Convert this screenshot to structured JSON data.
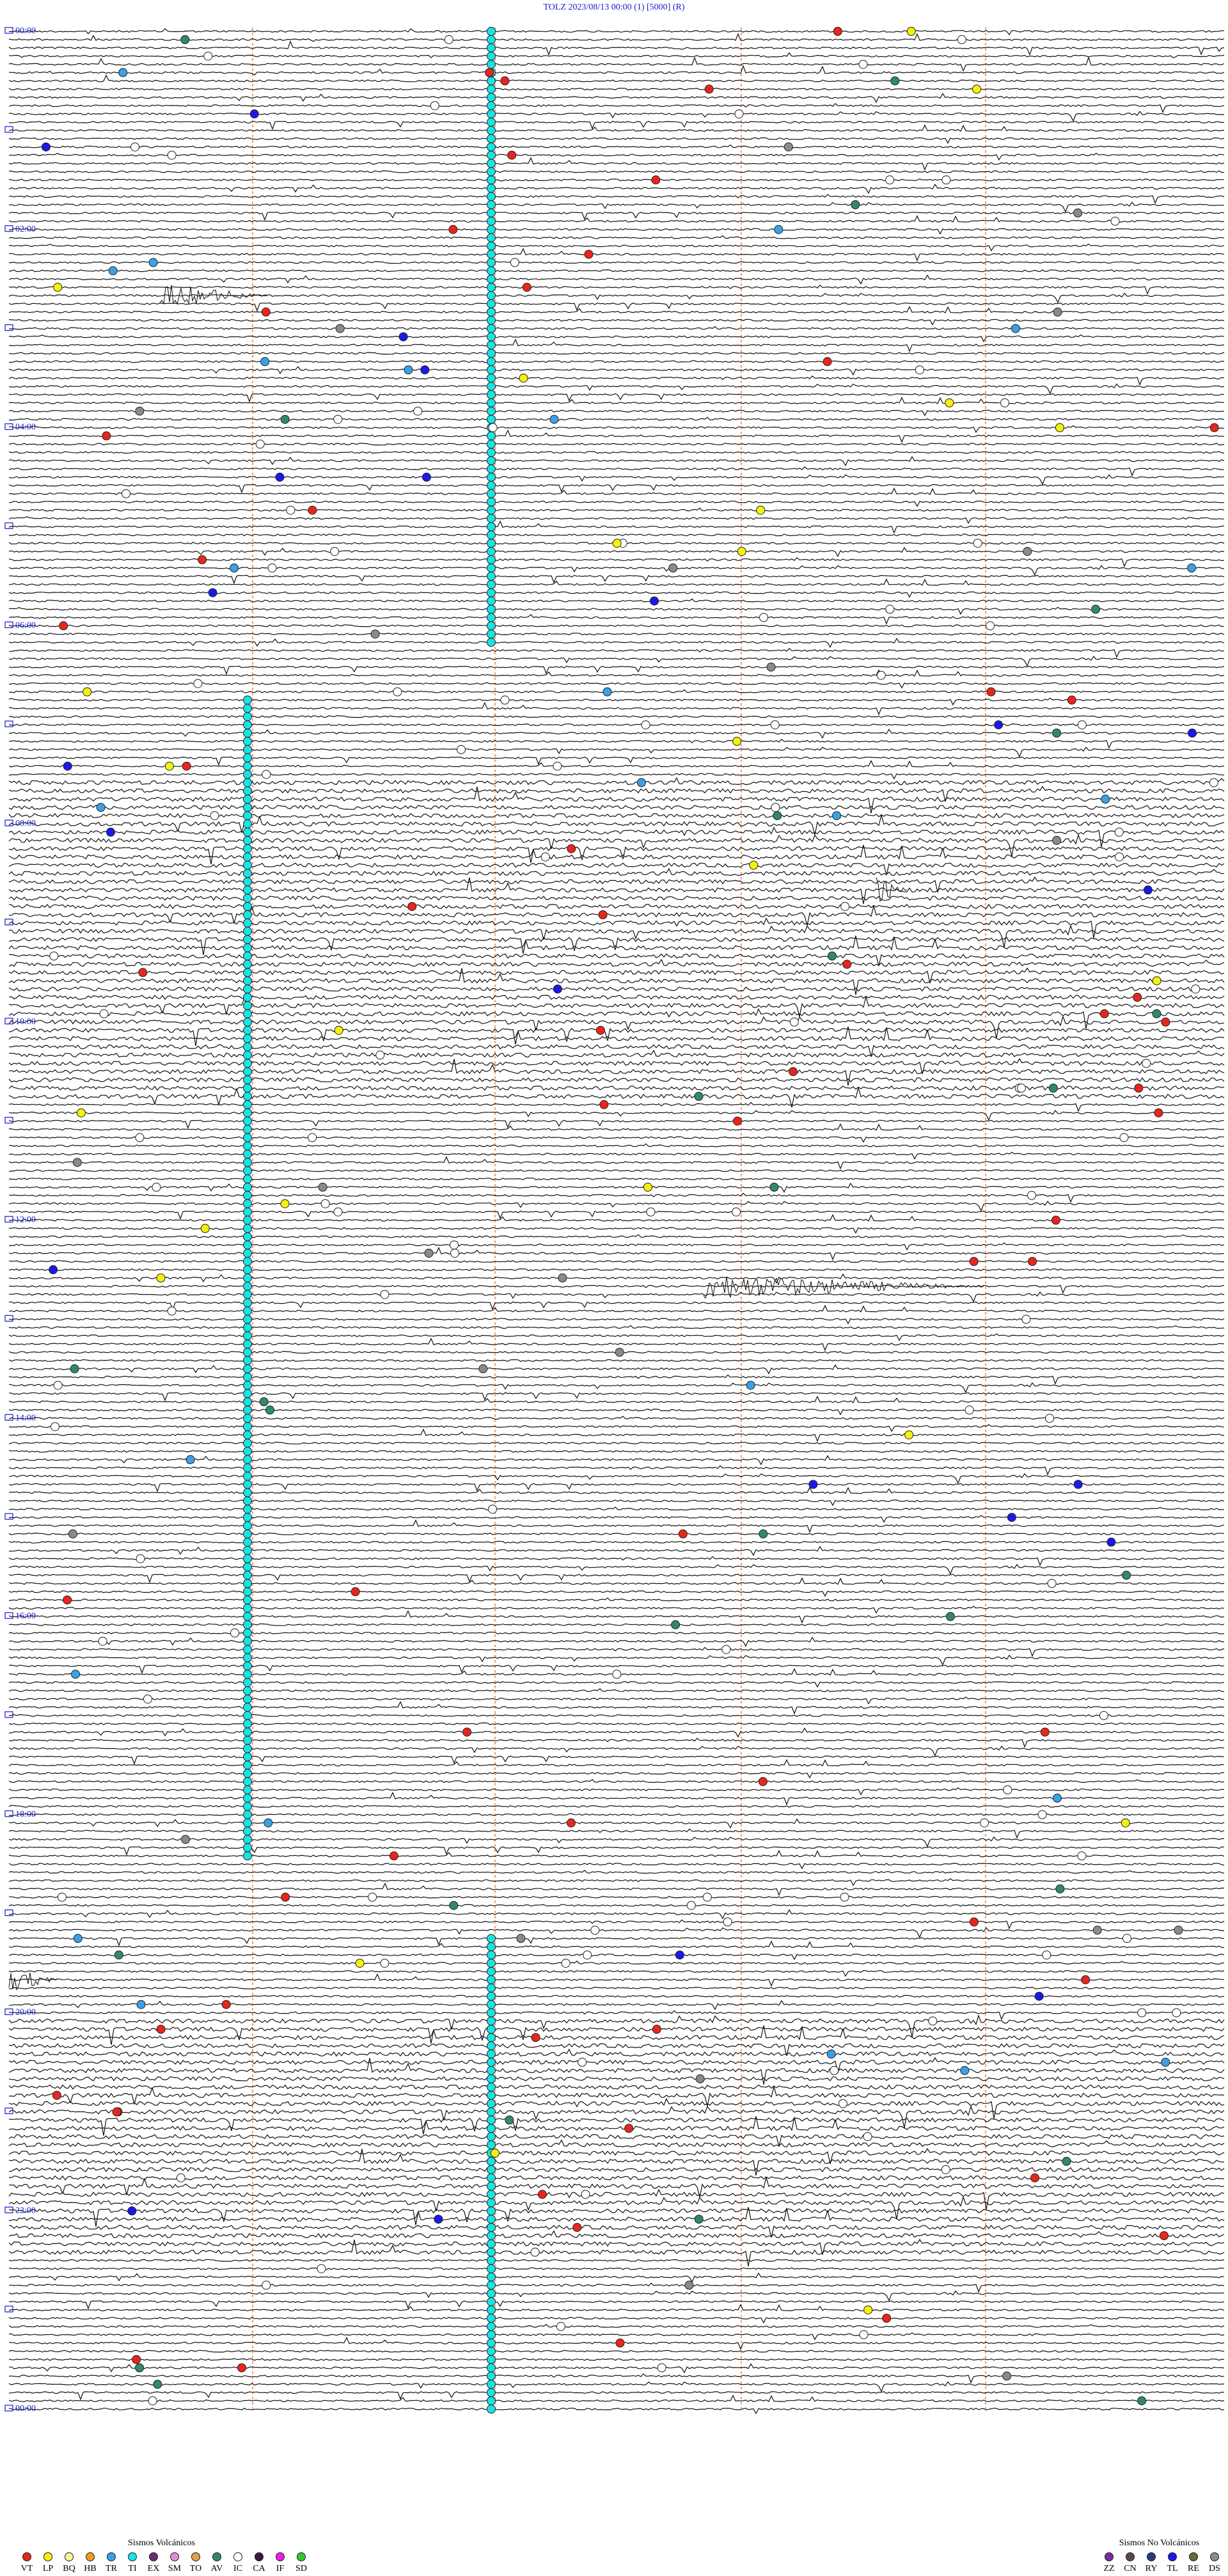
{
  "header": {
    "title": "TOLZ    2023/08/13 00:00     (1)     [5000]   (R)"
  },
  "hour_labels": [
    "00:00",
    "02:00",
    "04:00",
    "06:00",
    "08:00",
    "10:00",
    "12:00",
    "14:00",
    "16:00",
    "18:00",
    "20:00",
    "22:00",
    "00:00"
  ],
  "legend": [
    {
      "title": "Sismos Volcánicos",
      "items": [
        {
          "code": "VT",
          "color": "#e8261c"
        },
        {
          "code": "LP",
          "color": "#f5f20a"
        },
        {
          "code": "BQ",
          "color": "#f7f59a"
        },
        {
          "code": "HB",
          "color": "#f39a1e"
        },
        {
          "code": "TR",
          "color": "#3aa0e8"
        },
        {
          "code": "TI",
          "color": "#19e3e3"
        },
        {
          "code": "EX",
          "color": "#6a2a7a"
        },
        {
          "code": "SM",
          "color": "#d890d8"
        },
        {
          "code": "TO",
          "color": "#e0a050"
        },
        {
          "code": "AV",
          "color": "#2e8a6a"
        },
        {
          "code": "IC",
          "color": "#ffffff"
        },
        {
          "code": "CA",
          "color": "#3a1a3a"
        },
        {
          "code": "IF",
          "color": "#f01af0"
        },
        {
          "code": "SD",
          "color": "#2ec82e"
        }
      ]
    },
    {
      "title": "Sismos No Volcánicos",
      "items": [
        {
          "code": "ZZ",
          "color": "#7a2aa0"
        },
        {
          "code": "CN",
          "color": "#5a4a4a"
        },
        {
          "code": "RY",
          "color": "#2a3a7a"
        },
        {
          "code": "TL",
          "color": "#1a1ae8"
        },
        {
          "code": "RE",
          "color": "#6a6a3a"
        },
        {
          "code": "DS",
          "color": "#8a8a8a"
        }
      ]
    }
  ]
}
